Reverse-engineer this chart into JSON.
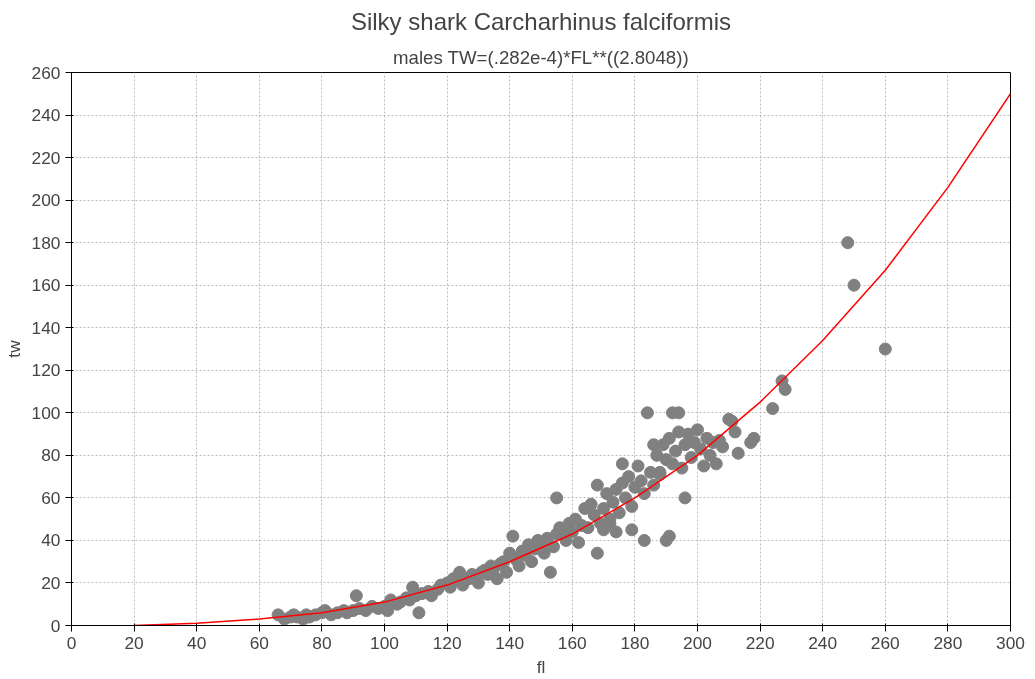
{
  "chart_data": {
    "type": "scatter",
    "title": "Silky shark Carcharhinus falciformis",
    "subtitle": "males TW=(.282e-4)*FL**((2.8048))",
    "xlabel": "fl",
    "ylabel": "tw",
    "xlim": [
      0,
      300
    ],
    "ylim": [
      0,
      260
    ],
    "xticks": [
      0,
      20,
      40,
      60,
      80,
      100,
      120,
      140,
      160,
      180,
      200,
      220,
      240,
      260,
      280,
      300
    ],
    "yticks": [
      0,
      20,
      40,
      60,
      80,
      100,
      120,
      140,
      160,
      180,
      200,
      220,
      240,
      260
    ],
    "grid": true,
    "series": [
      {
        "marker": "circle",
        "color": "#808080",
        "x": [
          66,
          68,
          70,
          71,
          72,
          74,
          75,
          76,
          78,
          80,
          81,
          83,
          85,
          87,
          88,
          90,
          91,
          92,
          94,
          96,
          98,
          100,
          101,
          102,
          104,
          105,
          107,
          108,
          109,
          110,
          111,
          112,
          114,
          115,
          117,
          118,
          120,
          121,
          122,
          123,
          124,
          125,
          127,
          128,
          130,
          131,
          132,
          133,
          134,
          135,
          136,
          137,
          138,
          139,
          140,
          141,
          142,
          143,
          144,
          145,
          146,
          147,
          148,
          149,
          150,
          151,
          152,
          153,
          154,
          155,
          156,
          157,
          158,
          159,
          160,
          161,
          162,
          163,
          164,
          165,
          166,
          167,
          168,
          169,
          170,
          171,
          172,
          173,
          174,
          175,
          176,
          177,
          178,
          179,
          180,
          181,
          182,
          183,
          184,
          185,
          186,
          187,
          188,
          189,
          190,
          191,
          192,
          193,
          194,
          195,
          196,
          197,
          198,
          199,
          200,
          201,
          202,
          203,
          204,
          205,
          206,
          207,
          208,
          210,
          211,
          212,
          213,
          217,
          218,
          224,
          227,
          228,
          248,
          250,
          260,
          155,
          168,
          190,
          191,
          192,
          194,
          183,
          179,
          174,
          186,
          188,
          196,
          170,
          172,
          176
        ],
        "values": [
          5,
          3,
          4,
          5,
          4,
          3,
          5,
          4,
          5,
          6,
          7,
          5,
          6,
          7,
          6,
          7,
          14,
          8,
          7,
          9,
          8,
          9,
          7,
          12,
          10,
          11,
          13,
          12,
          18,
          14,
          6,
          15,
          16,
          14,
          17,
          19,
          20,
          18,
          22,
          21,
          25,
          19,
          22,
          24,
          20,
          25,
          26,
          24,
          28,
          27,
          22,
          29,
          30,
          25,
          34,
          42,
          31,
          28,
          35,
          33,
          38,
          30,
          36,
          40,
          38,
          34,
          41,
          25,
          37,
          43,
          46,
          45,
          40,
          48,
          44,
          50,
          39,
          47,
          55,
          46,
          57,
          52,
          66,
          48,
          55,
          62,
          50,
          58,
          64,
          53,
          67,
          60,
          70,
          56,
          65,
          75,
          68,
          62,
          100,
          72,
          66,
          80,
          71,
          85,
          78,
          88,
          76,
          82,
          91,
          74,
          85,
          90,
          79,
          86,
          92,
          83,
          75,
          88,
          80,
          86,
          76,
          87,
          84,
          97,
          96,
          91,
          81,
          86,
          88,
          102,
          115,
          111,
          180,
          160,
          130,
          60,
          34,
          40,
          42,
          100,
          100,
          40,
          45,
          44,
          85,
          72,
          60,
          45,
          48,
          76
        ]
      },
      {
        "type": "line",
        "marker": "none",
        "color": "#ff0000",
        "x": [
          20,
          40,
          60,
          80,
          100,
          120,
          140,
          160,
          180,
          200,
          220,
          240,
          260,
          280,
          300
        ],
        "values": [
          0,
          1,
          3,
          6,
          11,
          19,
          30,
          43,
          60,
          80,
          105,
          134,
          167,
          206,
          250
        ]
      }
    ]
  }
}
